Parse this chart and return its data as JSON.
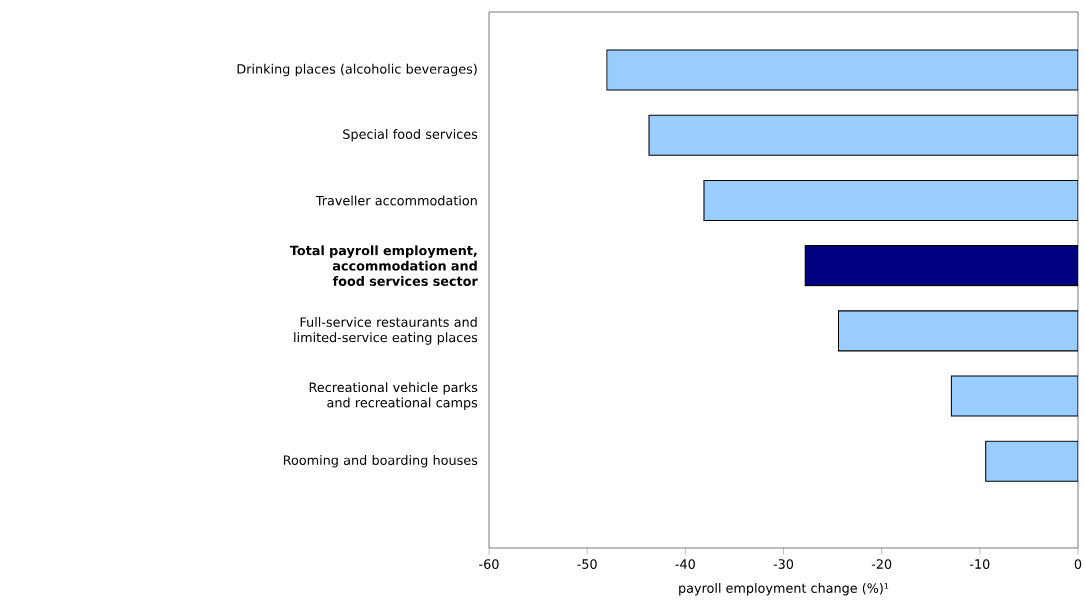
{
  "chart_data": {
    "type": "bar",
    "orientation": "horizontal",
    "xlabel": "payroll employment change (%)¹",
    "categories": [
      "Drinking places (alcoholic beverages)",
      "Special food services",
      "Traveller accommodation",
      "**Total payroll employment, accommodation and food services sector**",
      "Full-service restaurants and limited-service eating places",
      "Recreational vehicle parks and recreational camps",
      "Rooming and boarding houses"
    ],
    "values": [
      -48.0,
      -43.7,
      -38.1,
      -27.8,
      -24.4,
      -12.9,
      -9.4
    ],
    "colors": [
      "#99ccff",
      "#99ccff",
      "#99ccff",
      "#000080",
      "#99ccff",
      "#99ccff",
      "#99ccff"
    ],
    "xlim": [
      -60,
      0
    ],
    "xticks": [
      -60,
      -50,
      -40,
      -30,
      -20,
      -10,
      0
    ],
    "grid": false
  }
}
